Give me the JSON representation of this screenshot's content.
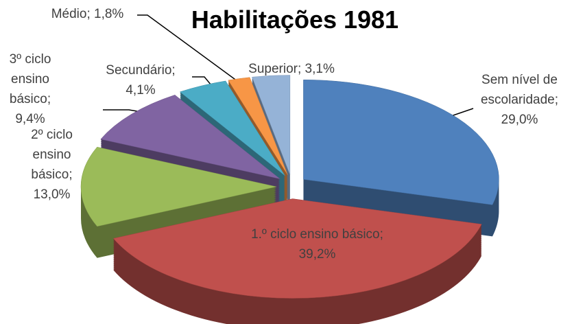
{
  "chart_data": {
    "type": "pie",
    "title": "Habilitações 1981",
    "categories": [
      "Sem nível de escolaridade",
      "1.º ciclo ensino básico",
      "2º ciclo ensino básico",
      "3º ciclo ensino básico",
      "Secundário",
      "Médio",
      "Superior"
    ],
    "values": [
      29.0,
      39.2,
      13.0,
      9.4,
      4.1,
      1.8,
      3.1
    ],
    "value_labels": [
      "29,0%",
      "39,2%",
      "13,0%",
      "9,4%",
      "4,1%",
      "1,8%",
      "3,1%"
    ],
    "label_separator": "; ",
    "colors": [
      "#4f81bd",
      "#c0504d",
      "#9bbb59",
      "#8064a2",
      "#4bacc6",
      "#f79646",
      "#95b3d7"
    ]
  }
}
